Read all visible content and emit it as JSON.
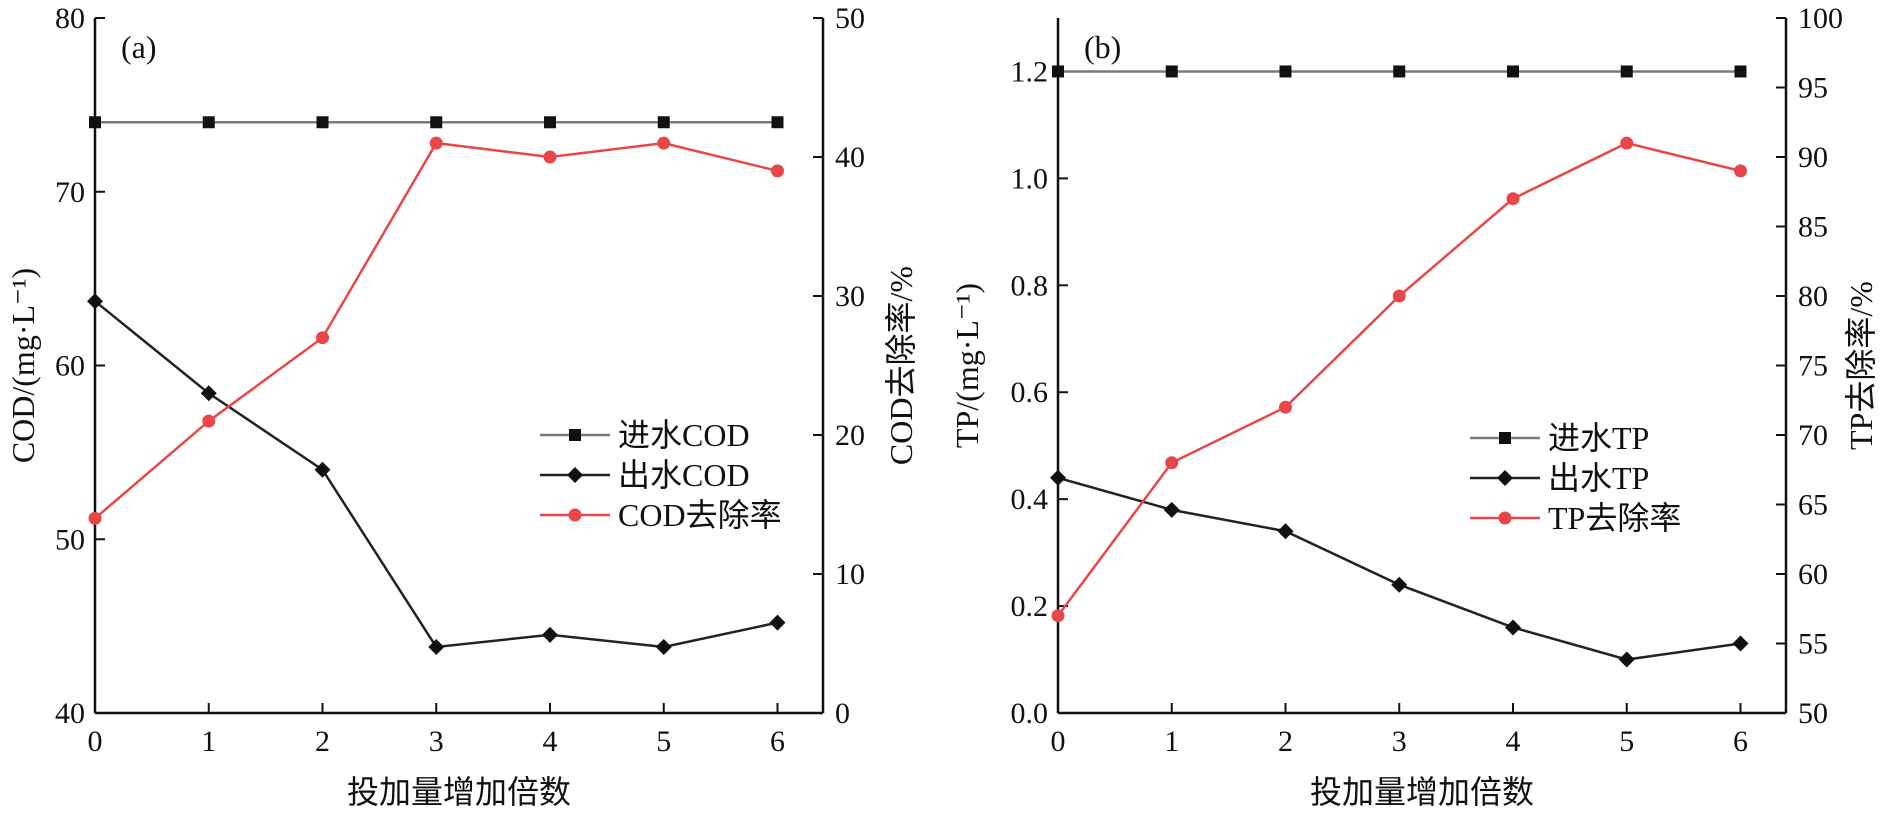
{
  "chart_data": [
    {
      "type": "line",
      "panel_label": "(a)",
      "xlabel": "投加量增加倍数",
      "ylabel": "COD/(mg·L⁻¹)",
      "y2label": "COD去除率/%",
      "xlim": [
        0,
        6.4
      ],
      "ylim": [
        40,
        80
      ],
      "y2lim": [
        0,
        50
      ],
      "x_ticks": [
        "0",
        "1",
        "2",
        "3",
        "4",
        "5",
        "6"
      ],
      "y_ticks": [
        "40",
        "50",
        "60",
        "70",
        "80"
      ],
      "y2_ticks": [
        "0",
        "10",
        "20",
        "30",
        "40",
        "50"
      ],
      "x": [
        0,
        1,
        2,
        3,
        4,
        5,
        6
      ],
      "grid": false,
      "legend_position": "right-middle",
      "series": [
        {
          "name": "进水COD",
          "axis": "left",
          "marker": "square",
          "color": "#7a7a7a",
          "marker_color": "#111111",
          "values": [
            74,
            74,
            74,
            74,
            74,
            74,
            74
          ]
        },
        {
          "name": "出水COD",
          "axis": "left",
          "marker": "diamond",
          "color": "#222222",
          "marker_color": "#111111",
          "values": [
            63.7,
            58.4,
            54,
            43.8,
            44.5,
            43.8,
            45.2
          ]
        },
        {
          "name": "COD去除率",
          "axis": "right",
          "marker": "circle",
          "color": "#e8474a",
          "marker_color": "#e8474a",
          "values": [
            14,
            21,
            27,
            41,
            40,
            41,
            39
          ]
        }
      ]
    },
    {
      "type": "line",
      "panel_label": "(b)",
      "xlabel": "投加量增加倍数",
      "ylabel": "TP/(mg·L⁻¹)",
      "y2label": "TP去除率/%",
      "xlim": [
        0,
        6.4
      ],
      "ylim": [
        0,
        1.3
      ],
      "y2lim": [
        50,
        100
      ],
      "x_ticks": [
        "0",
        "1",
        "2",
        "3",
        "4",
        "5",
        "6"
      ],
      "y_ticks": [
        "0.0",
        "0.2",
        "0.4",
        "0.6",
        "0.8",
        "1.0",
        "1.2"
      ],
      "y2_ticks": [
        "50",
        "55",
        "60",
        "65",
        "70",
        "75",
        "80",
        "85",
        "90",
        "95",
        "100"
      ],
      "x": [
        0,
        1,
        2,
        3,
        4,
        5,
        6
      ],
      "grid": false,
      "legend_position": "right-middle",
      "series": [
        {
          "name": "进水TP",
          "axis": "left",
          "marker": "square",
          "color": "#7a7a7a",
          "marker_color": "#111111",
          "values": [
            1.2,
            1.2,
            1.2,
            1.2,
            1.2,
            1.2,
            1.2
          ]
        },
        {
          "name": "出水TP",
          "axis": "left",
          "marker": "diamond",
          "color": "#222222",
          "marker_color": "#111111",
          "values": [
            0.44,
            0.38,
            0.34,
            0.24,
            0.16,
            0.1,
            0.13
          ]
        },
        {
          "name": "TP去除率",
          "axis": "right",
          "marker": "circle",
          "color": "#e8474a",
          "marker_color": "#e8474a",
          "values": [
            57,
            68,
            72,
            80,
            87,
            91,
            89
          ]
        }
      ]
    }
  ]
}
